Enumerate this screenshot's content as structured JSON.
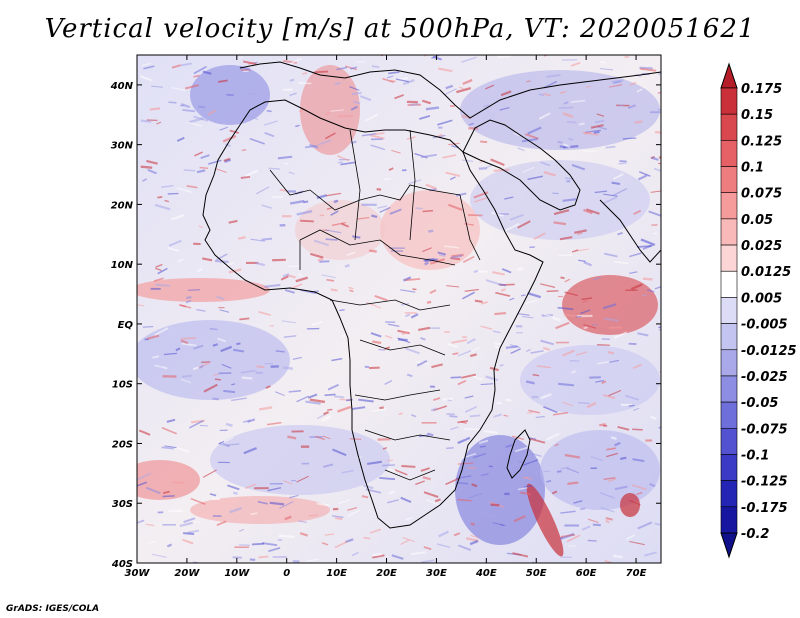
{
  "title": "Vertical velocity [m/s] at 500hPa, VT: 2020051621",
  "footer": "GrADS: IGES/COLA",
  "axes": {
    "lon_labels": [
      "30W",
      "20W",
      "10W",
      "0",
      "10E",
      "20E",
      "30E",
      "40E",
      "50E",
      "60E",
      "70E"
    ],
    "lat_labels": [
      "40N",
      "30N",
      "20N",
      "10N",
      "EQ",
      "10S",
      "20S",
      "30S",
      "40S"
    ],
    "lon_range": [
      -30,
      75
    ],
    "lat_range": [
      -40,
      45
    ]
  },
  "colorbar": {
    "labels": [
      "0.175",
      "0.15",
      "0.125",
      "0.1",
      "0.075",
      "0.05",
      "0.025",
      "0.0125",
      "0.005",
      "-0.005",
      "-0.0125",
      "-0.025",
      "-0.05",
      "-0.075",
      "-0.1",
      "-0.125",
      "-0.175",
      "-0.2"
    ],
    "colors": [
      "#b51e28",
      "#c9303a",
      "#d9484e",
      "#e56166",
      "#ee7d80",
      "#f59b9c",
      "#f9b9b9",
      "#fcd6d6",
      "#ffffff",
      "#dcdcf7",
      "#c4c4f0",
      "#a9a9ea",
      "#8d8de3",
      "#6f6fdb",
      "#5353d2",
      "#3a3ac6",
      "#2424b5",
      "#1616a0",
      "#10108a"
    ]
  },
  "colors": {
    "positive": "#c8283a",
    "negative": "#3a3ac6",
    "coast": "#000000"
  }
}
